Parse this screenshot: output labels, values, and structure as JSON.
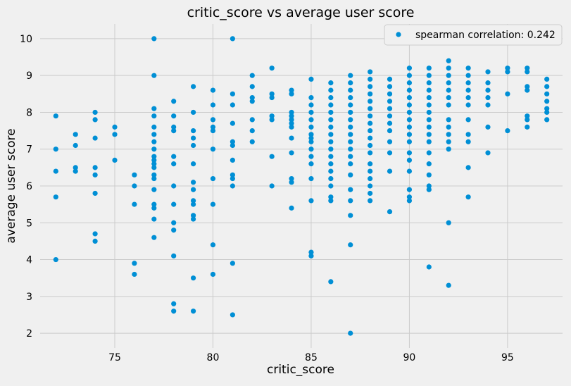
{
  "chart_data": {
    "type": "scatter",
    "title": "critic_score vs average user score",
    "xlabel": "critic_score",
    "ylabel": "average user score",
    "xlim": [
      71.2,
      97.8
    ],
    "ylim": [
      1.6,
      10.4
    ],
    "xticks": [
      75,
      80,
      85,
      90,
      95
    ],
    "yticks": [
      2,
      3,
      4,
      5,
      6,
      7,
      8,
      9,
      10
    ],
    "grid": true,
    "legend_position": "top-right",
    "colors": {
      "background": "#f0f0f0",
      "grid": "#cbcbcb",
      "marker": "#008fd5"
    },
    "series": [
      {
        "name": "spearman correlation: 0.242",
        "points": [
          [
            72,
            7.9
          ],
          [
            72,
            7.0
          ],
          [
            72,
            6.4
          ],
          [
            72,
            5.7
          ],
          [
            72,
            4.0
          ],
          [
            73,
            7.4
          ],
          [
            73,
            7.1
          ],
          [
            73,
            6.5
          ],
          [
            73,
            6.4
          ],
          [
            74,
            8.0
          ],
          [
            74,
            7.8
          ],
          [
            74,
            7.3
          ],
          [
            74,
            6.5
          ],
          [
            74,
            6.3
          ],
          [
            74,
            5.8
          ],
          [
            74,
            4.7
          ],
          [
            74,
            4.5
          ],
          [
            75,
            7.6
          ],
          [
            75,
            7.4
          ],
          [
            75,
            6.7
          ],
          [
            76,
            6.3
          ],
          [
            76,
            6.0
          ],
          [
            76,
            5.5
          ],
          [
            76,
            3.9
          ],
          [
            76,
            3.6
          ],
          [
            77,
            10.0
          ],
          [
            77,
            9.0
          ],
          [
            77,
            8.1
          ],
          [
            77,
            7.9
          ],
          [
            77,
            7.6
          ],
          [
            77,
            7.4
          ],
          [
            77,
            7.2
          ],
          [
            77,
            7.0
          ],
          [
            77,
            6.8
          ],
          [
            77,
            6.7
          ],
          [
            77,
            6.6
          ],
          [
            77,
            6.5
          ],
          [
            77,
            6.3
          ],
          [
            77,
            6.2
          ],
          [
            77,
            5.9
          ],
          [
            77,
            5.5
          ],
          [
            77,
            5.4
          ],
          [
            77,
            5.1
          ],
          [
            77,
            4.6
          ],
          [
            78,
            8.3
          ],
          [
            78,
            7.9
          ],
          [
            78,
            7.6
          ],
          [
            78,
            7.5
          ],
          [
            78,
            6.8
          ],
          [
            78,
            6.6
          ],
          [
            78,
            6.0
          ],
          [
            78,
            5.5
          ],
          [
            78,
            5.0
          ],
          [
            78,
            4.8
          ],
          [
            78,
            4.1
          ],
          [
            78,
            2.8
          ],
          [
            78,
            2.6
          ],
          [
            79,
            8.7
          ],
          [
            79,
            8.0
          ],
          [
            79,
            7.5
          ],
          [
            79,
            7.3
          ],
          [
            79,
            7.1
          ],
          [
            79,
            6.6
          ],
          [
            79,
            6.1
          ],
          [
            79,
            5.9
          ],
          [
            79,
            5.6
          ],
          [
            79,
            5.5
          ],
          [
            79,
            5.2
          ],
          [
            79,
            5.1
          ],
          [
            79,
            3.5
          ],
          [
            79,
            2.6
          ],
          [
            80,
            8.6
          ],
          [
            80,
            8.2
          ],
          [
            80,
            7.8
          ],
          [
            80,
            7.6
          ],
          [
            80,
            7.5
          ],
          [
            80,
            7.0
          ],
          [
            80,
            6.2
          ],
          [
            80,
            5.5
          ],
          [
            80,
            4.4
          ],
          [
            80,
            3.6
          ],
          [
            81,
            10.0
          ],
          [
            81,
            8.5
          ],
          [
            81,
            8.2
          ],
          [
            81,
            7.7
          ],
          [
            81,
            7.2
          ],
          [
            81,
            7.1
          ],
          [
            81,
            6.7
          ],
          [
            81,
            6.3
          ],
          [
            81,
            6.2
          ],
          [
            81,
            6.0
          ],
          [
            81,
            3.9
          ],
          [
            81,
            2.5
          ],
          [
            82,
            9.0
          ],
          [
            82,
            8.7
          ],
          [
            82,
            8.4
          ],
          [
            82,
            8.3
          ],
          [
            82,
            7.8
          ],
          [
            82,
            7.5
          ],
          [
            82,
            7.2
          ],
          [
            83,
            9.2
          ],
          [
            83,
            8.5
          ],
          [
            83,
            8.4
          ],
          [
            83,
            7.9
          ],
          [
            83,
            7.8
          ],
          [
            83,
            6.8
          ],
          [
            83,
            6.0
          ],
          [
            84,
            8.6
          ],
          [
            84,
            8.5
          ],
          [
            84,
            8.0
          ],
          [
            84,
            7.9
          ],
          [
            84,
            7.8
          ],
          [
            84,
            7.7
          ],
          [
            84,
            7.6
          ],
          [
            84,
            7.3
          ],
          [
            84,
            6.9
          ],
          [
            84,
            6.2
          ],
          [
            84,
            6.1
          ],
          [
            84,
            5.4
          ],
          [
            85,
            8.9
          ],
          [
            85,
            8.4
          ],
          [
            85,
            8.2
          ],
          [
            85,
            8.0
          ],
          [
            85,
            7.8
          ],
          [
            85,
            7.6
          ],
          [
            85,
            7.4
          ],
          [
            85,
            7.3
          ],
          [
            85,
            7.2
          ],
          [
            85,
            7.0
          ],
          [
            85,
            6.8
          ],
          [
            85,
            6.6
          ],
          [
            85,
            6.2
          ],
          [
            85,
            5.6
          ],
          [
            85,
            4.2
          ],
          [
            85,
            4.1
          ],
          [
            86,
            8.8
          ],
          [
            86,
            8.6
          ],
          [
            86,
            8.4
          ],
          [
            86,
            8.2
          ],
          [
            86,
            8.0
          ],
          [
            86,
            7.8
          ],
          [
            86,
            7.6
          ],
          [
            86,
            7.4
          ],
          [
            86,
            7.2
          ],
          [
            86,
            7.0
          ],
          [
            86,
            6.8
          ],
          [
            86,
            6.6
          ],
          [
            86,
            6.4
          ],
          [
            86,
            6.2
          ],
          [
            86,
            6.0
          ],
          [
            86,
            5.7
          ],
          [
            86,
            5.6
          ],
          [
            86,
            3.4
          ],
          [
            87,
            9.0
          ],
          [
            87,
            8.8
          ],
          [
            87,
            8.6
          ],
          [
            87,
            8.4
          ],
          [
            87,
            8.2
          ],
          [
            87,
            8.0
          ],
          [
            87,
            7.8
          ],
          [
            87,
            7.6
          ],
          [
            87,
            7.4
          ],
          [
            87,
            7.2
          ],
          [
            87,
            7.0
          ],
          [
            87,
            6.8
          ],
          [
            87,
            6.6
          ],
          [
            87,
            6.3
          ],
          [
            87,
            5.9
          ],
          [
            87,
            5.6
          ],
          [
            87,
            5.2
          ],
          [
            87,
            4.4
          ],
          [
            87,
            2.0
          ],
          [
            88,
            9.1
          ],
          [
            88,
            8.9
          ],
          [
            88,
            8.7
          ],
          [
            88,
            8.5
          ],
          [
            88,
            8.3
          ],
          [
            88,
            8.1
          ],
          [
            88,
            7.9
          ],
          [
            88,
            7.7
          ],
          [
            88,
            7.5
          ],
          [
            88,
            7.3
          ],
          [
            88,
            7.1
          ],
          [
            88,
            6.9
          ],
          [
            88,
            6.6
          ],
          [
            88,
            6.4
          ],
          [
            88,
            6.2
          ],
          [
            88,
            6.0
          ],
          [
            88,
            5.8
          ],
          [
            88,
            5.6
          ],
          [
            89,
            8.9
          ],
          [
            89,
            8.7
          ],
          [
            89,
            8.5
          ],
          [
            89,
            8.3
          ],
          [
            89,
            8.1
          ],
          [
            89,
            7.9
          ],
          [
            89,
            7.7
          ],
          [
            89,
            7.5
          ],
          [
            89,
            7.2
          ],
          [
            89,
            6.9
          ],
          [
            89,
            6.4
          ],
          [
            89,
            5.3
          ],
          [
            90,
            9.2
          ],
          [
            90,
            9.0
          ],
          [
            90,
            8.8
          ],
          [
            90,
            8.6
          ],
          [
            90,
            8.4
          ],
          [
            90,
            8.2
          ],
          [
            90,
            8.0
          ],
          [
            90,
            7.8
          ],
          [
            90,
            7.6
          ],
          [
            90,
            7.4
          ],
          [
            90,
            7.2
          ],
          [
            90,
            6.9
          ],
          [
            90,
            6.7
          ],
          [
            90,
            6.4
          ],
          [
            90,
            5.9
          ],
          [
            90,
            5.7
          ],
          [
            90,
            5.6
          ],
          [
            91,
            9.2
          ],
          [
            91,
            9.0
          ],
          [
            91,
            8.8
          ],
          [
            91,
            8.6
          ],
          [
            91,
            8.4
          ],
          [
            91,
            8.2
          ],
          [
            91,
            8.0
          ],
          [
            91,
            7.8
          ],
          [
            91,
            7.6
          ],
          [
            91,
            7.4
          ],
          [
            91,
            7.2
          ],
          [
            91,
            6.9
          ],
          [
            91,
            6.6
          ],
          [
            91,
            6.3
          ],
          [
            91,
            6.0
          ],
          [
            91,
            5.9
          ],
          [
            91,
            3.8
          ],
          [
            92,
            9.4
          ],
          [
            92,
            9.2
          ],
          [
            92,
            9.0
          ],
          [
            92,
            8.8
          ],
          [
            92,
            8.6
          ],
          [
            92,
            8.4
          ],
          [
            92,
            8.2
          ],
          [
            92,
            7.8
          ],
          [
            92,
            7.6
          ],
          [
            92,
            7.4
          ],
          [
            92,
            7.2
          ],
          [
            92,
            7.0
          ],
          [
            92,
            5.0
          ],
          [
            92,
            3.3
          ],
          [
            93,
            9.2
          ],
          [
            93,
            9.0
          ],
          [
            93,
            8.8
          ],
          [
            93,
            8.6
          ],
          [
            93,
            8.4
          ],
          [
            93,
            8.2
          ],
          [
            93,
            7.8
          ],
          [
            93,
            7.4
          ],
          [
            93,
            7.2
          ],
          [
            93,
            6.5
          ],
          [
            93,
            5.7
          ],
          [
            94,
            9.1
          ],
          [
            94,
            8.8
          ],
          [
            94,
            8.6
          ],
          [
            94,
            8.4
          ],
          [
            94,
            8.2
          ],
          [
            94,
            7.6
          ],
          [
            94,
            6.9
          ],
          [
            95,
            9.2
          ],
          [
            95,
            9.1
          ],
          [
            95,
            8.5
          ],
          [
            95,
            7.5
          ],
          [
            96,
            9.2
          ],
          [
            96,
            9.1
          ],
          [
            96,
            8.7
          ],
          [
            96,
            8.6
          ],
          [
            96,
            7.9
          ],
          [
            96,
            7.8
          ],
          [
            96,
            7.6
          ],
          [
            97,
            8.9
          ],
          [
            97,
            8.7
          ],
          [
            97,
            8.5
          ],
          [
            97,
            8.3
          ],
          [
            97,
            8.1
          ],
          [
            97,
            8.0
          ],
          [
            97,
            7.8
          ]
        ]
      }
    ]
  }
}
